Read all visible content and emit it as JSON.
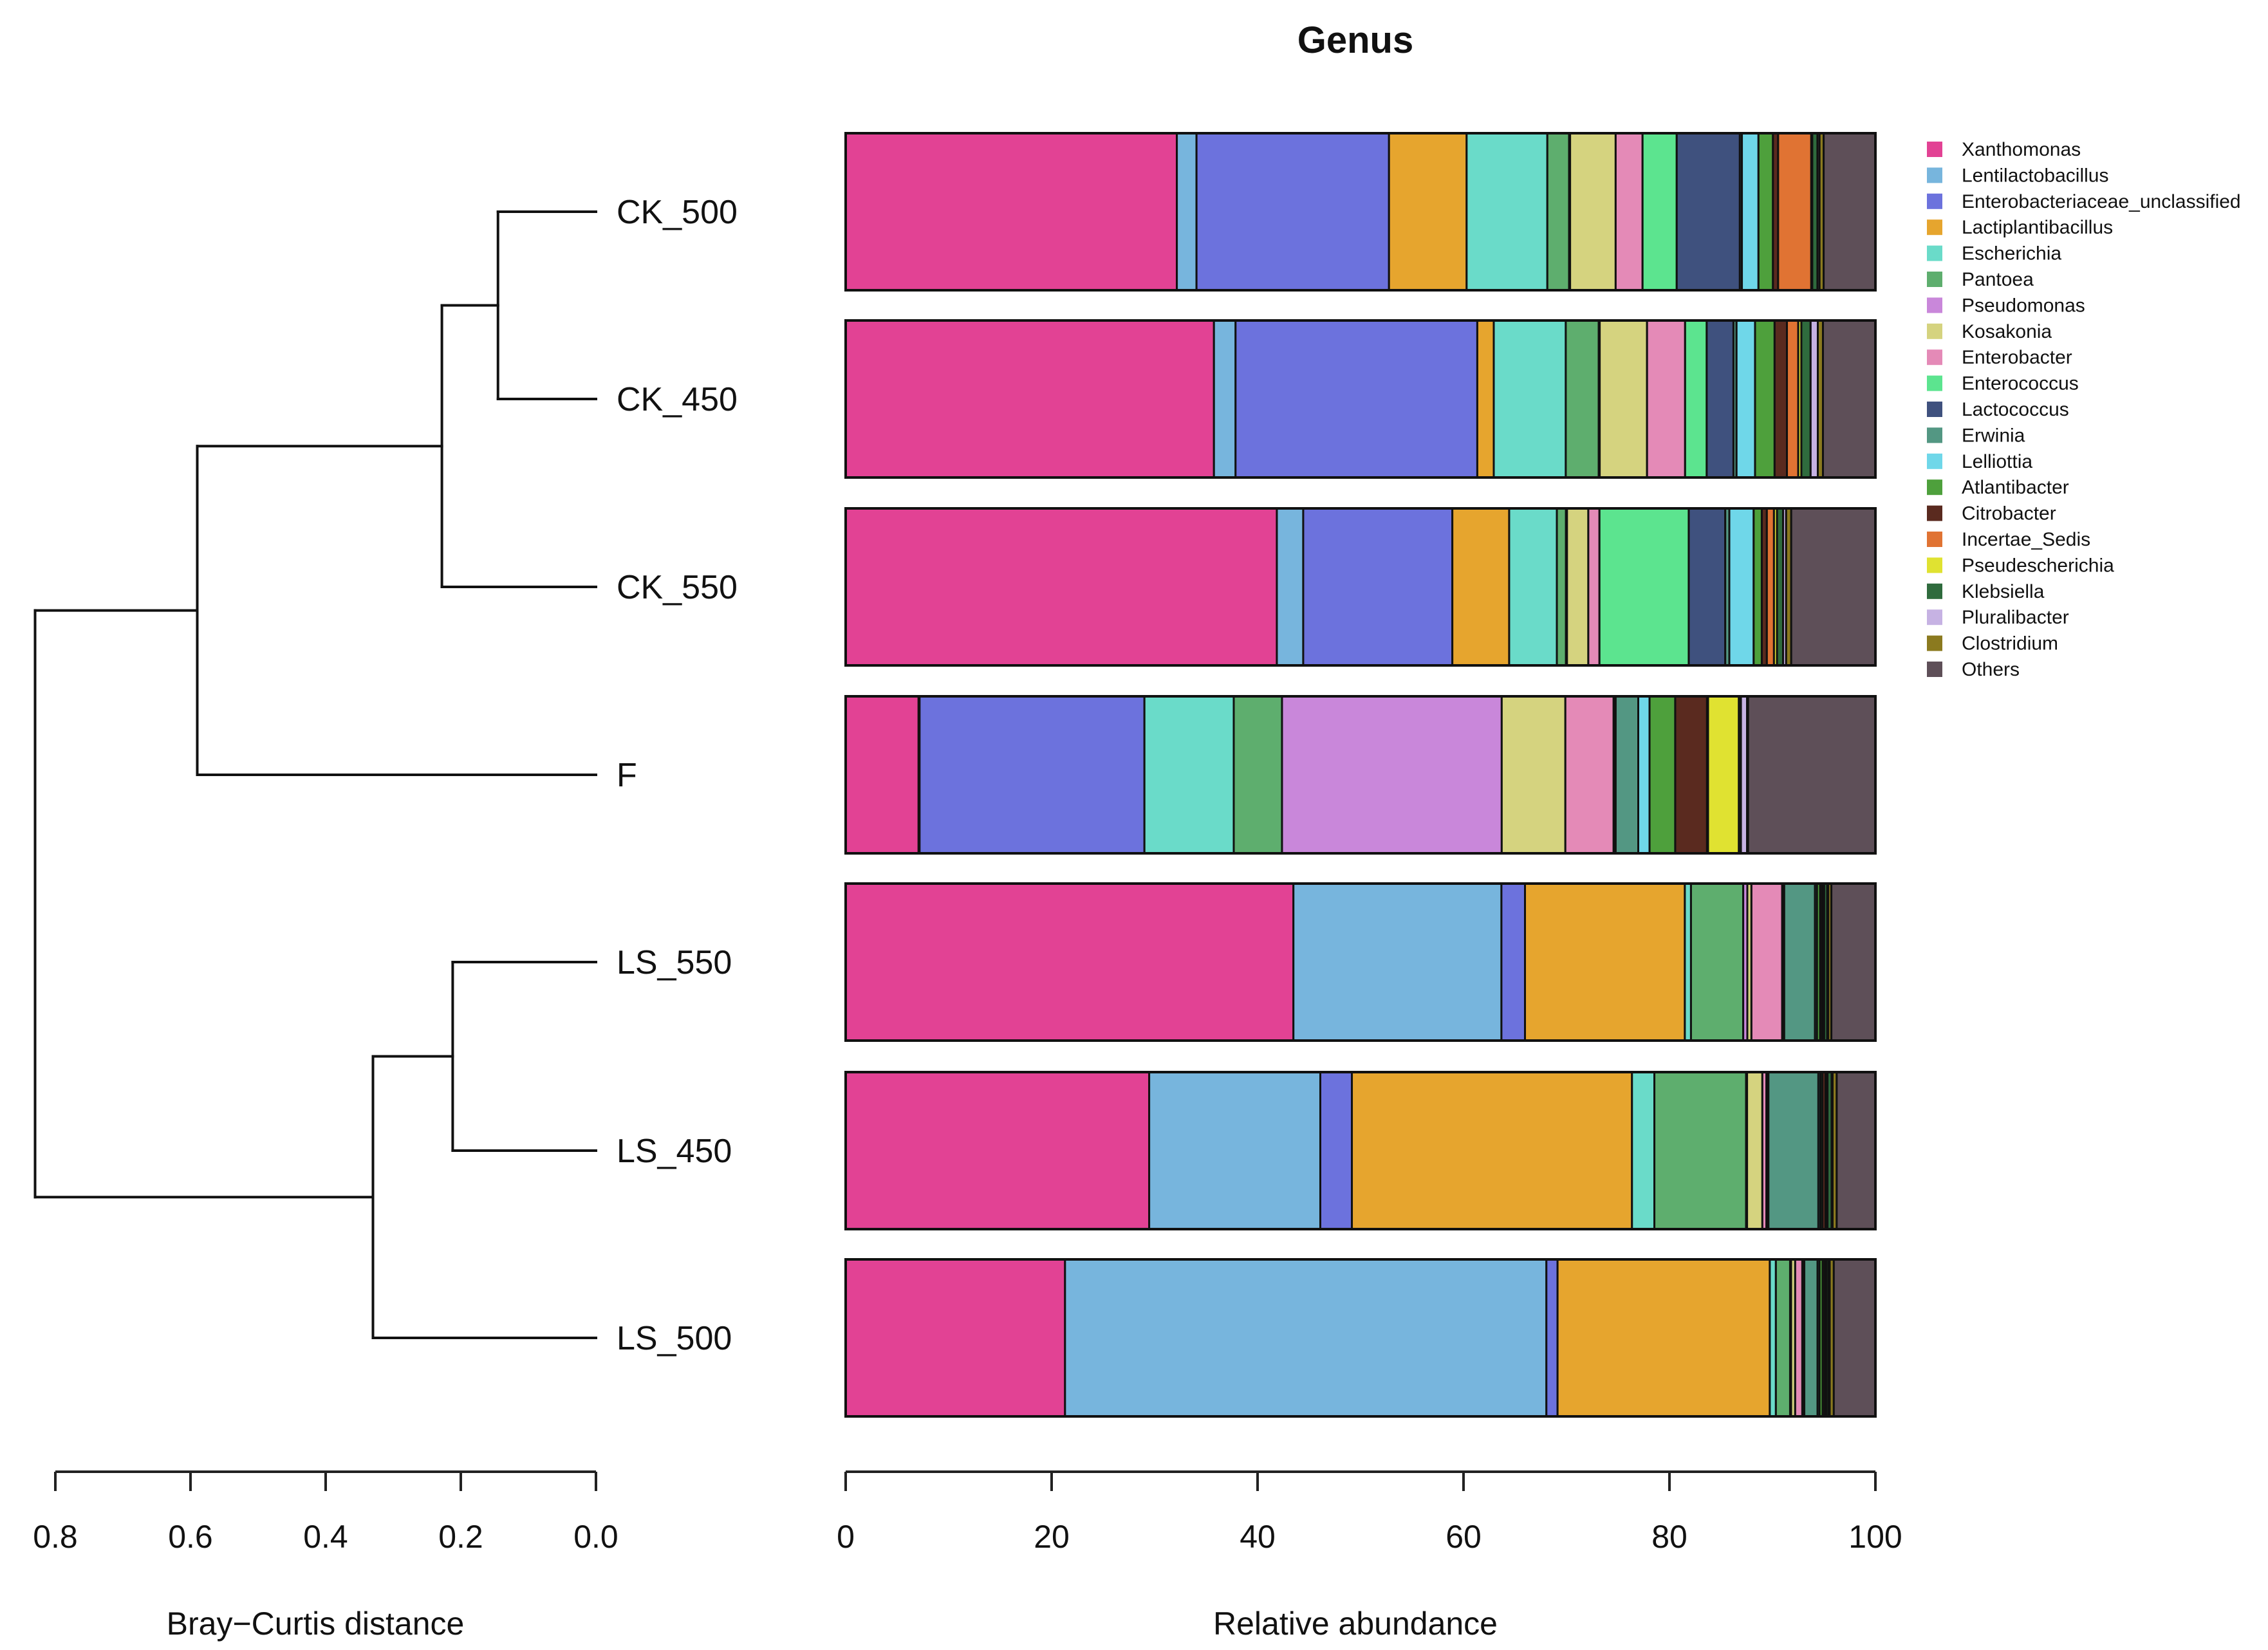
{
  "chart_data": {
    "type": "bar",
    "orientation": "horizontal",
    "stacked": true,
    "title": "Genus",
    "xlabel": "Relative abundance",
    "xlim": [
      0,
      100
    ],
    "xticks": [
      "0",
      "20",
      "40",
      "60",
      "80",
      "100"
    ],
    "categories": [
      "CK_500",
      "CK_450",
      "CK_550",
      "F",
      "LS_550",
      "LS_450",
      "LS_500"
    ],
    "series": [
      {
        "name": "Xanthomonas",
        "color": "#e24294",
        "values": [
          32.0,
          35.8,
          42.5,
          7.1,
          43.7,
          29.8,
          21.6
        ]
      },
      {
        "name": "Lentilactobacillus",
        "color": "#77b5dd",
        "values": [
          1.9,
          2.1,
          2.6,
          0.1,
          20.3,
          16.8,
          47.4
        ]
      },
      {
        "name": "Enterobacteriaceae_unclassified",
        "color": "#6c72dd",
        "values": [
          18.6,
          23.5,
          14.7,
          21.9,
          2.3,
          3.1,
          1.1
        ]
      },
      {
        "name": "Lactiplantibacillus",
        "color": "#e6a52e",
        "values": [
          7.5,
          1.6,
          5.6,
          0.0,
          15.6,
          27.5,
          20.9
        ]
      },
      {
        "name": "Escherichia",
        "color": "#6adbc9",
        "values": [
          7.8,
          7.0,
          4.7,
          8.7,
          0.6,
          2.2,
          0.6
        ]
      },
      {
        "name": "Pantoea",
        "color": "#5eae6e",
        "values": [
          2.1,
          3.2,
          0.9,
          4.7,
          5.1,
          9.0,
          1.4
        ]
      },
      {
        "name": "Pseudomonas",
        "color": "#c987da",
        "values": [
          0.1,
          0.1,
          0.1,
          21.4,
          0.4,
          0.1,
          0.1
        ]
      },
      {
        "name": "Kosakonia",
        "color": "#d5d37f",
        "values": [
          4.4,
          4.6,
          2.1,
          6.2,
          0.4,
          1.5,
          0.4
        ]
      },
      {
        "name": "Enterobacter",
        "color": "#e48ab7",
        "values": [
          2.6,
          3.7,
          1.1,
          4.7,
          3.0,
          0.4,
          0.7
        ]
      },
      {
        "name": "Enterococcus",
        "color": "#5ce48f",
        "values": [
          3.3,
          2.1,
          8.8,
          0.1,
          0.1,
          0.1,
          0.1
        ]
      },
      {
        "name": "Lactococcus",
        "color": "#3f517e",
        "values": [
          6.1,
          2.6,
          3.6,
          0.1,
          0.1,
          0.1,
          0.1
        ]
      },
      {
        "name": "Erwinia",
        "color": "#539783",
        "values": [
          0.2,
          0.3,
          0.4,
          2.2,
          3.0,
          4.9,
          1.3
        ]
      },
      {
        "name": "Lelliottia",
        "color": "#6fd7e9",
        "values": [
          1.6,
          1.8,
          2.4,
          1.1,
          0.2,
          0.2,
          0.2
        ]
      },
      {
        "name": "Atlantibacter",
        "color": "#4ea03c",
        "values": [
          1.4,
          1.9,
          0.8,
          2.5,
          0.3,
          0.2,
          0.3
        ]
      },
      {
        "name": "Citrobacter",
        "color": "#5a2a1f",
        "values": [
          0.5,
          1.2,
          0.5,
          3.1,
          0.2,
          0.3,
          0.2
        ]
      },
      {
        "name": "Incertae_Sedis",
        "color": "#e07333",
        "values": [
          3.2,
          1.1,
          0.7,
          0.1,
          0.1,
          0.1,
          0.1
        ]
      },
      {
        "name": "Pseudescherichia",
        "color": "#e0e231",
        "values": [
          0.1,
          0.3,
          0.3,
          3.0,
          0.1,
          0.1,
          0.1
        ]
      },
      {
        "name": "Klebsiella",
        "color": "#2f6b3d",
        "values": [
          0.5,
          0.9,
          0.6,
          0.2,
          0.3,
          0.4,
          0.2
        ]
      },
      {
        "name": "Pluralibacter",
        "color": "#c6b2e3",
        "values": [
          0.2,
          0.7,
          0.3,
          0.6,
          0.1,
          0.1,
          0.1
        ]
      },
      {
        "name": "Clostridium",
        "color": "#8b7a1f",
        "values": [
          0.4,
          0.5,
          0.5,
          0.1,
          0.3,
          0.4,
          0.4
        ]
      },
      {
        "name": "Others",
        "color": "#5e4f58",
        "values": [
          5.0,
          5.1,
          8.3,
          12.4,
          4.3,
          3.8,
          4.1
        ]
      }
    ],
    "dendrogram": {
      "xlabel": "Bray−Curtis distance",
      "xlim": [
        0.8,
        0.0
      ],
      "xticks": [
        "0.8",
        "0.6",
        "0.4",
        "0.2",
        "0.0"
      ],
      "merges": [
        {
          "a": "CK_500",
          "b": "CK_450",
          "height": 0.145
        },
        {
          "a": "(CK_500,CK_450)",
          "b": "CK_550",
          "height": 0.228
        },
        {
          "a": "(CK)",
          "b": "F",
          "height": 0.59
        },
        {
          "a": "LS_550",
          "b": "LS_450",
          "height": 0.212
        },
        {
          "a": "(LS_550,LS_450)",
          "b": "LS_500",
          "height": 0.33
        },
        {
          "a": "(CK,F)",
          "b": "(LS)",
          "height": 0.83
        }
      ]
    },
    "legend": "right"
  }
}
